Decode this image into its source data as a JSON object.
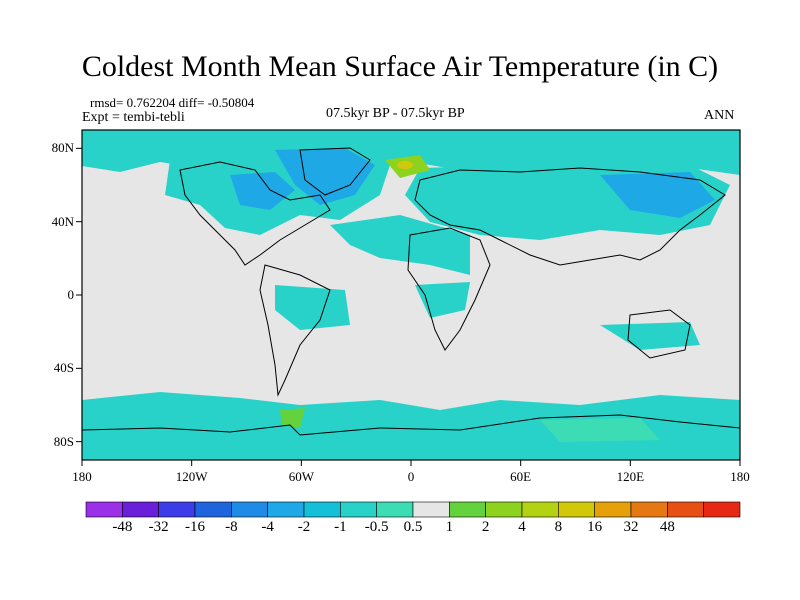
{
  "title": "Coldest Month Mean Surface Air Temperature (in C)",
  "stats": "rmsd= 0.762204 diff= -0.50804",
  "experiment": "Expt = tembi-tebli",
  "period": "07.5kyr BP - 07.5kyr BP",
  "season": "ANN",
  "map": {
    "projection": "cylindrical-equidistant",
    "lon_range": [
      -180,
      180
    ],
    "lat_range": [
      -90,
      90
    ],
    "lat_ticks": [
      {
        "label": "80N",
        "value": 80
      },
      {
        "label": "40N",
        "value": 40
      },
      {
        "label": "0",
        "value": 0
      },
      {
        "label": "40S",
        "value": -40
      },
      {
        "label": "80S",
        "value": -80
      }
    ],
    "lon_ticks": [
      {
        "label": "180",
        "value": -180
      },
      {
        "label": "120W",
        "value": -120
      },
      {
        "label": "60W",
        "value": -60
      },
      {
        "label": "0",
        "value": 0
      },
      {
        "label": "60E",
        "value": 60
      },
      {
        "label": "120E",
        "value": 120
      },
      {
        "label": "180",
        "value": 180
      }
    ],
    "background_color": "#e6e6e6",
    "coastline_color": "#000000"
  },
  "colorbar": {
    "colors": [
      "#9b30e8",
      "#6a20d8",
      "#3c3ce8",
      "#1e64dc",
      "#1e8ce6",
      "#1ea8e6",
      "#14c0d8",
      "#28d2c8",
      "#3cdcb4",
      "#e6e6e6",
      "#64d23c",
      "#8cd21e",
      "#b4d214",
      "#d2c80a",
      "#e6a00a",
      "#e67814",
      "#e65014",
      "#e62814"
    ],
    "labels": [
      "-48",
      "-32",
      "-16",
      "-8",
      "-4",
      "-2",
      "-1",
      "-0.5",
      "0.5",
      "1",
      "2",
      "4",
      "8",
      "16",
      "32",
      "48"
    ]
  }
}
